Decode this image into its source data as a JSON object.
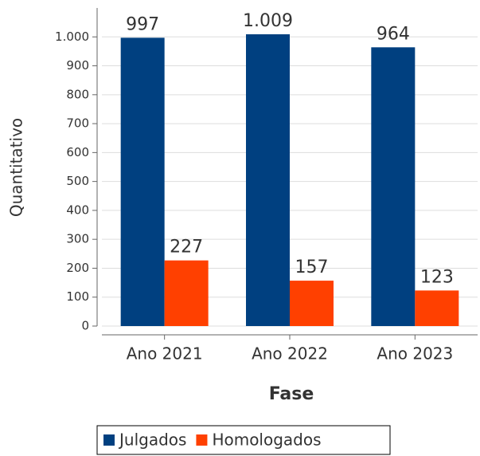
{
  "chart_data": {
    "type": "bar",
    "x_label": "Fase",
    "y_label": "Quantitativo",
    "categories": [
      "Ano 2021",
      "Ano 2022",
      "Ano 2023"
    ],
    "series": [
      {
        "name": "Julgados",
        "color": "#004080",
        "values": [
          997,
          1009,
          964
        ],
        "value_labels": [
          "997",
          "1.009",
          "964"
        ]
      },
      {
        "name": "Homologados",
        "color": "#ff4000",
        "values": [
          227,
          157,
          123
        ]
      }
    ],
    "ylim": [
      0,
      1100
    ],
    "yticks": [
      0,
      100,
      200,
      300,
      400,
      500,
      600,
      700,
      800,
      900,
      {
        "value": 1000,
        "label": "1.000"
      }
    ],
    "grid": true,
    "legend": "bottom"
  }
}
